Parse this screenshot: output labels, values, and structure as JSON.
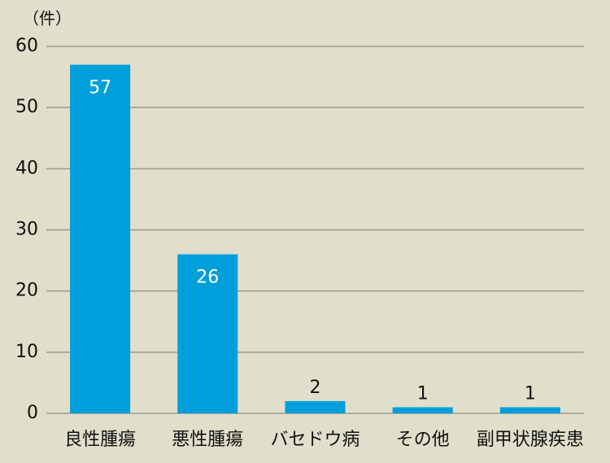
{
  "chart_data": {
    "type": "bar",
    "y_label": "（件）",
    "categories": [
      "良性腫瘍",
      "悪性腫瘍",
      "バセドウ病",
      "その他",
      "副甲状腺疾患"
    ],
    "values": [
      57,
      26,
      2,
      1,
      1
    ],
    "color": "#009fdb",
    "ylim": [
      0,
      60
    ],
    "yticks": [
      0,
      10,
      20,
      30,
      40,
      50,
      60
    ],
    "grid": true
  }
}
